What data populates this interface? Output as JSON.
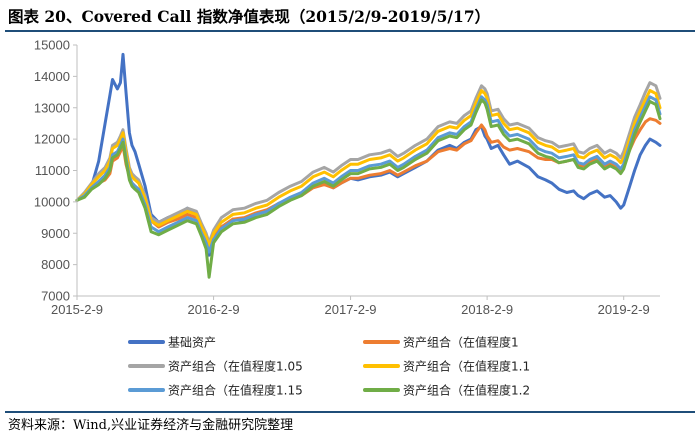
{
  "header": {
    "title": "图表 20、Covered Call 指数净值表现（2015/2/9-2019/5/17）"
  },
  "footer": {
    "source": "资料来源：Wind,兴业证券经济与金融研究院整理"
  },
  "chart_data": {
    "type": "line",
    "title": "",
    "xlabel": "",
    "ylabel": "",
    "ylim": [
      7000,
      15000
    ],
    "yticks": [
      7000,
      8000,
      9000,
      10000,
      11000,
      12000,
      13000,
      14000,
      15000
    ],
    "xlim": [
      "2015-02-09",
      "2019-05-17"
    ],
    "xticks": [
      "2015-2-9",
      "2016-2-9",
      "2017-2-9",
      "2018-2-9",
      "2019-2-9"
    ],
    "grid": false,
    "legend_position": "bottom",
    "x": [
      "2015-02-09",
      "2015-03-01",
      "2015-03-20",
      "2015-04-08",
      "2015-04-25",
      "2015-05-08",
      "2015-05-15",
      "2015-05-28",
      "2015-06-05",
      "2015-06-12",
      "2015-06-20",
      "2015-06-29",
      "2015-07-06",
      "2015-07-14",
      "2015-07-24",
      "2015-08-10",
      "2015-08-26",
      "2015-09-15",
      "2015-10-10",
      "2015-11-05",
      "2015-12-01",
      "2015-12-25",
      "2016-01-08",
      "2016-01-20",
      "2016-01-28",
      "2016-02-09",
      "2016-03-01",
      "2016-04-01",
      "2016-05-01",
      "2016-06-01",
      "2016-07-01",
      "2016-08-01",
      "2016-09-01",
      "2016-10-01",
      "2016-11-01",
      "2016-12-01",
      "2016-12-25",
      "2017-01-15",
      "2017-02-09",
      "2017-03-01",
      "2017-04-01",
      "2017-05-01",
      "2017-05-25",
      "2017-06-15",
      "2017-07-01",
      "2017-08-01",
      "2017-09-01",
      "2017-10-01",
      "2017-11-01",
      "2017-11-20",
      "2017-12-10",
      "2017-12-28",
      "2018-01-10",
      "2018-01-25",
      "2018-02-03",
      "2018-02-09",
      "2018-02-20",
      "2018-03-10",
      "2018-03-25",
      "2018-04-10",
      "2018-05-01",
      "2018-06-01",
      "2018-06-25",
      "2018-07-15",
      "2018-08-01",
      "2018-08-20",
      "2018-09-10",
      "2018-09-28",
      "2018-10-10",
      "2018-10-25",
      "2018-11-10",
      "2018-11-30",
      "2018-12-20",
      "2019-01-04",
      "2019-01-20",
      "2019-02-01",
      "2019-02-09",
      "2019-02-25",
      "2019-03-10",
      "2019-03-25",
      "2019-04-08",
      "2019-04-20",
      "2019-05-06",
      "2019-05-17"
    ],
    "series": [
      {
        "name": "基础资产",
        "color": "#4472C4",
        "width": 3,
        "values": [
          10050,
          10200,
          10500,
          11300,
          12500,
          13400,
          13900,
          13600,
          13800,
          14700,
          13500,
          12200,
          11800,
          11600,
          11200,
          10500,
          9600,
          9350,
          9500,
          9600,
          9800,
          9600,
          9100,
          8700,
          8300,
          8700,
          9200,
          9450,
          9400,
          9600,
          9700,
          9950,
          10100,
          10250,
          10500,
          10600,
          10450,
          10600,
          10750,
          10700,
          10800,
          10850,
          10950,
          10800,
          10900,
          11100,
          11300,
          11650,
          11800,
          11700,
          11900,
          12000,
          12300,
          12400,
          12100,
          12000,
          11700,
          11800,
          11500,
          11200,
          11300,
          11100,
          10800,
          10700,
          10600,
          10400,
          10300,
          10350,
          10200,
          10100,
          10250,
          10350,
          10150,
          10200,
          10000,
          9800,
          9900,
          10500,
          11000,
          11500,
          11800,
          12000,
          11900,
          11800
        ]
      },
      {
        "name": "资产组合（在值程度1",
        "color": "#ED7D31",
        "width": 3,
        "values": [
          10050,
          10250,
          10450,
          10600,
          10700,
          10900,
          11300,
          11400,
          11600,
          11800,
          11200,
          10800,
          10600,
          10500,
          10400,
          10000,
          9400,
          9200,
          9350,
          9450,
          9600,
          9500,
          9100,
          8800,
          8500,
          8900,
          9200,
          9450,
          9500,
          9650,
          9750,
          9950,
          10100,
          10200,
          10450,
          10550,
          10450,
          10600,
          10750,
          10750,
          10850,
          10900,
          11000,
          10850,
          10950,
          11150,
          11300,
          11600,
          11700,
          11650,
          11850,
          11950,
          12200,
          12450,
          12300,
          12100,
          11900,
          11950,
          11750,
          11650,
          11700,
          11600,
          11400,
          11350,
          11350,
          11250,
          11300,
          11350,
          11150,
          11150,
          11300,
          11350,
          11150,
          11200,
          11100,
          11000,
          11200,
          11650,
          12000,
          12300,
          12550,
          12650,
          12600,
          12500
        ]
      },
      {
        "name": "资产组合（在值程度1.05",
        "color": "#A5A5A5",
        "width": 3,
        "values": [
          10050,
          10300,
          10600,
          10900,
          11100,
          11400,
          11800,
          11900,
          12100,
          12300,
          11700,
          11100,
          10900,
          10800,
          10700,
          10200,
          9500,
          9350,
          9500,
          9650,
          9800,
          9700,
          9300,
          9000,
          8700,
          9100,
          9500,
          9750,
          9800,
          9950,
          10050,
          10300,
          10500,
          10650,
          10950,
          11100,
          10950,
          11150,
          11350,
          11350,
          11500,
          11550,
          11650,
          11450,
          11550,
          11800,
          12000,
          12400,
          12550,
          12500,
          12750,
          12900,
          13300,
          13700,
          13600,
          13450,
          12900,
          12950,
          12650,
          12450,
          12500,
          12350,
          12050,
          11950,
          11900,
          11750,
          11800,
          11850,
          11600,
          11550,
          11700,
          11800,
          11550,
          11650,
          11550,
          11400,
          11600,
          12200,
          12700,
          13100,
          13500,
          13800,
          13700,
          13300
        ]
      },
      {
        "name": "资产组合（在值程度1.1",
        "color": "#FFC000",
        "width": 3,
        "values": [
          10050,
          10250,
          10550,
          10800,
          11000,
          11300,
          11700,
          11800,
          12000,
          12200,
          11600,
          11000,
          10800,
          10700,
          10600,
          10100,
          9400,
          9250,
          9400,
          9550,
          9700,
          9600,
          9200,
          8900,
          8600,
          9000,
          9350,
          9600,
          9650,
          9800,
          9900,
          10150,
          10350,
          10500,
          10800,
          10950,
          10800,
          11000,
          11200,
          11200,
          11350,
          11400,
          11500,
          11300,
          11400,
          11650,
          11850,
          12250,
          12400,
          12350,
          12600,
          12750,
          13150,
          13550,
          13450,
          13300,
          12750,
          12800,
          12500,
          12300,
          12350,
          12200,
          11900,
          11800,
          11750,
          11600,
          11650,
          11700,
          11450,
          11400,
          11550,
          11650,
          11400,
          11500,
          11400,
          11250,
          11400,
          12000,
          12500,
          12900,
          13250,
          13550,
          13450,
          13000
        ]
      },
      {
        "name": "资产组合（在值程度1.15",
        "color": "#5B9BD5",
        "width": 3,
        "values": [
          10050,
          10200,
          10450,
          10650,
          10850,
          11100,
          11500,
          11600,
          11800,
          12000,
          11400,
          10800,
          10600,
          10500,
          10400,
          9900,
          9200,
          9050,
          9200,
          9350,
          9500,
          9400,
          9000,
          8700,
          8400,
          8800,
          9150,
          9400,
          9450,
          9600,
          9700,
          9950,
          10150,
          10300,
          10600,
          10750,
          10600,
          10800,
          11000,
          11000,
          11150,
          11200,
          11300,
          11100,
          11200,
          11450,
          11650,
          12050,
          12200,
          12150,
          12400,
          12550,
          12950,
          13350,
          13250,
          13100,
          12550,
          12600,
          12300,
          12100,
          12150,
          12000,
          11700,
          11600,
          11550,
          11400,
          11450,
          11500,
          11250,
          11200,
          11350,
          11450,
          11200,
          11300,
          11200,
          11050,
          11200,
          11800,
          12300,
          12700,
          13050,
          13350,
          13250,
          12800
        ]
      },
      {
        "name": "资产组合（在值程度1.2",
        "color": "#70AD47",
        "width": 3,
        "values": [
          10050,
          10150,
          10400,
          10550,
          10750,
          11000,
          11400,
          11500,
          11700,
          11900,
          11300,
          10700,
          10500,
          10400,
          10300,
          9800,
          9050,
          8950,
          9100,
          9250,
          9400,
          9300,
          8900,
          8500,
          7600,
          8700,
          9050,
          9300,
          9350,
          9500,
          9600,
          9850,
          10050,
          10200,
          10500,
          10650,
          10500,
          10700,
          10900,
          10900,
          11050,
          11100,
          11200,
          11000,
          11100,
          11350,
          11550,
          11950,
          12100,
          12050,
          12300,
          12450,
          12850,
          13250,
          13150,
          12950,
          12400,
          12450,
          12150,
          11950,
          12000,
          11850,
          11550,
          11450,
          11400,
          11250,
          11300,
          11350,
          11100,
          11050,
          11200,
          11300,
          11050,
          11150,
          11050,
          10900,
          11050,
          11650,
          12150,
          12550,
          12900,
          13200,
          13100,
          12650
        ]
      }
    ]
  }
}
